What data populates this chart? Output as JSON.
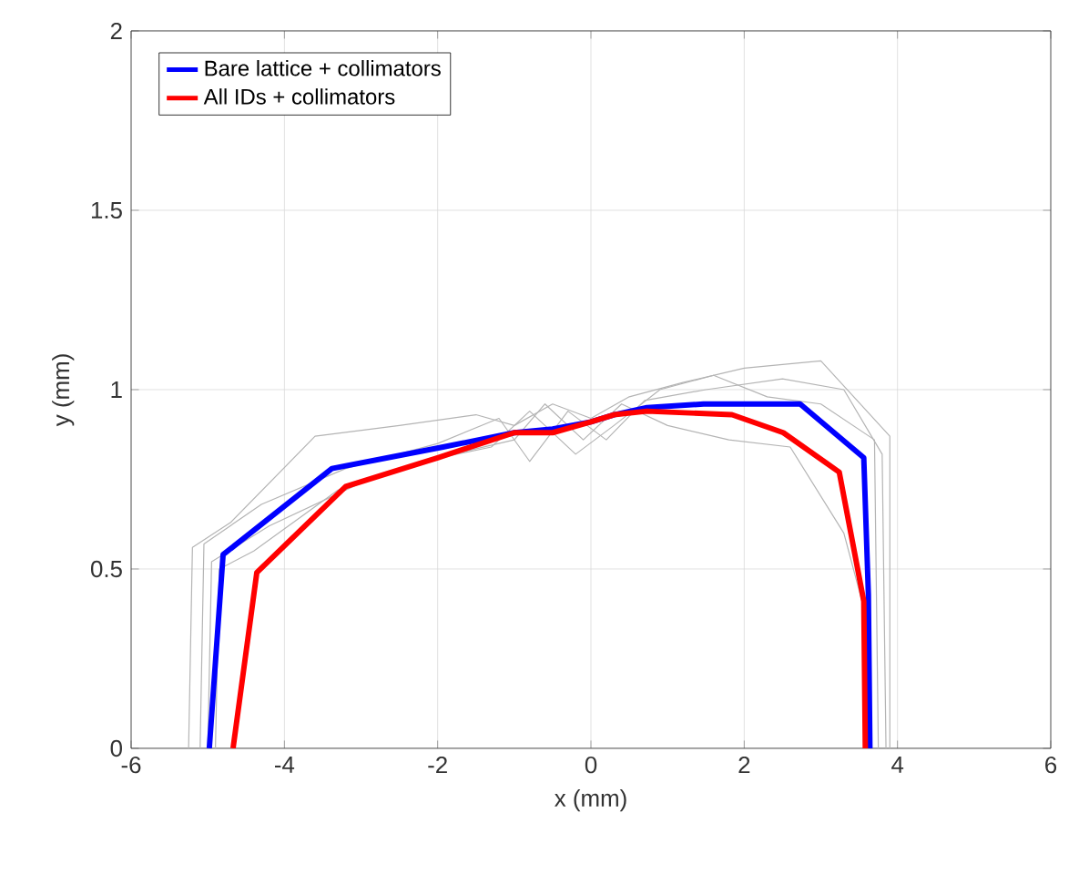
{
  "chart_data": {
    "type": "line",
    "xlabel": "x (mm)",
    "ylabel": "y (mm)",
    "xlim": [
      -6,
      6
    ],
    "ylim": [
      0,
      2
    ],
    "xticks": [
      -6,
      -4,
      -2,
      0,
      2,
      4,
      6
    ],
    "yticks": [
      0,
      0.5,
      1,
      1.5,
      2
    ],
    "grid": true,
    "legend": "top left",
    "series": [
      {
        "color": "#b4b4b4",
        "x": [
          -5.25,
          -5.2,
          -4.7,
          -3.6,
          -2.5,
          -1.5,
          -1,
          -0.5,
          0,
          0.5,
          1.2,
          2,
          3,
          3.9,
          3.9
        ],
        "values": [
          0,
          0.56,
          0.63,
          0.87,
          0.9,
          0.93,
          0.9,
          0.96,
          0.92,
          0.98,
          1.02,
          1.06,
          1.08,
          0.87,
          0
        ]
      },
      {
        "color": "#b4b4b4",
        "x": [
          -5.1,
          -5.05,
          -4.3,
          -3.2,
          -2,
          -1.2,
          -0.8,
          -0.3,
          0.2,
          0.7,
          1.5,
          2.5,
          3.3,
          3.8,
          3.85
        ],
        "values": [
          0,
          0.57,
          0.68,
          0.78,
          0.85,
          0.92,
          0.8,
          0.94,
          0.86,
          0.97,
          1.0,
          1.03,
          1.0,
          0.82,
          0
        ]
      },
      {
        "color": "#b4b4b4",
        "x": [
          -5.0,
          -4.95,
          -4.2,
          -3.0,
          -1.8,
          -1,
          -0.6,
          -0.1,
          0.4,
          1,
          1.8,
          2.6,
          3.3,
          3.55,
          3.6
        ],
        "values": [
          0,
          0.52,
          0.62,
          0.74,
          0.82,
          0.86,
          0.96,
          0.86,
          0.96,
          0.9,
          0.86,
          0.84,
          0.6,
          0.4,
          0
        ]
      },
      {
        "color": "#b4b4b4",
        "x": [
          -4.9,
          -4.85,
          -4.4,
          -3.3,
          -2.2,
          -1.3,
          -0.8,
          -0.2,
          0.3,
          0.9,
          1.6,
          2.3,
          3.0,
          3.7,
          3.75
        ],
        "values": [
          0,
          0.5,
          0.55,
          0.72,
          0.8,
          0.84,
          0.94,
          0.82,
          0.9,
          1.0,
          1.04,
          0.98,
          0.96,
          0.86,
          0
        ]
      },
      {
        "name": "Bare lattice + collimators",
        "color": "#0000ff",
        "x": [
          -4.98,
          -4.8,
          -3.38,
          -1.93,
          -1,
          -0.5,
          0,
          0.3,
          0.73,
          1.47,
          2.73,
          3.56,
          3.62,
          3.64
        ],
        "values": [
          0,
          0.54,
          0.78,
          0.84,
          0.88,
          0.89,
          0.91,
          0.93,
          0.95,
          0.96,
          0.96,
          0.81,
          0.43,
          0
        ]
      },
      {
        "name": "All IDs + collimators",
        "color": "#ff0000",
        "x": [
          -4.67,
          -4.36,
          -3.2,
          -2,
          -1,
          -0.5,
          0,
          0.3,
          0.73,
          1.84,
          2.51,
          3.24,
          3.56,
          3.58
        ],
        "values": [
          0,
          0.49,
          0.73,
          0.81,
          0.88,
          0.88,
          0.91,
          0.93,
          0.94,
          0.93,
          0.88,
          0.77,
          0.41,
          0
        ]
      }
    ]
  }
}
